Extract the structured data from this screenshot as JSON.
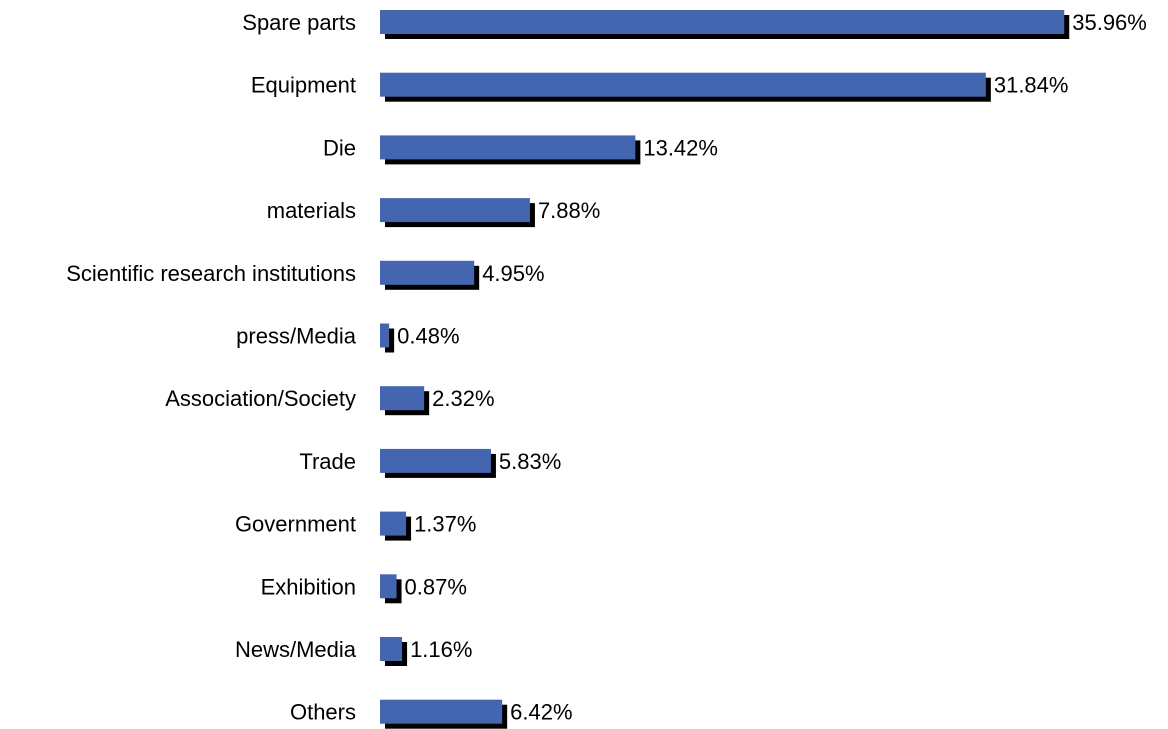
{
  "chart_data": {
    "type": "bar",
    "orientation": "horizontal",
    "categories": [
      "Spare parts",
      "Equipment",
      "Die",
      "materials",
      "Scientific research institutions",
      "press/Media",
      "Association/Society",
      "Trade",
      "Government",
      "Exhibition",
      "News/Media",
      "Others"
    ],
    "values": [
      35.96,
      31.84,
      13.42,
      7.88,
      4.95,
      0.48,
      2.32,
      5.83,
      1.37,
      0.87,
      1.16,
      6.42
    ],
    "value_labels": [
      "35.96%",
      "31.84%",
      "13.42%",
      "7.88%",
      "4.95%",
      "0.48%",
      "2.32%",
      "5.83%",
      "1.37%",
      "0.87%",
      "1.16%",
      "6.42%"
    ],
    "unit": "%",
    "title": "",
    "xlabel": "",
    "ylabel": "",
    "xlim": [
      0,
      36
    ],
    "grid": false,
    "legend": "none",
    "colors": {
      "bar": "#4466b0",
      "shadow": "#000000",
      "text": "#000000",
      "background": "#ffffff"
    }
  }
}
